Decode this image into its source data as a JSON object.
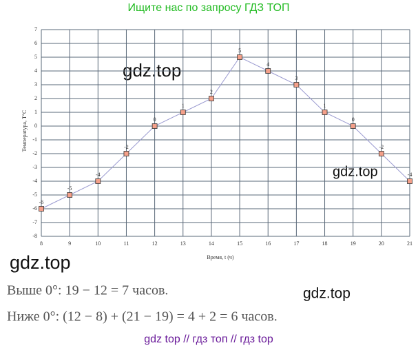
{
  "header": {
    "text": "Ищите нас по запросу ГДЗ ТОП"
  },
  "chart_data": {
    "type": "line",
    "x": [
      8,
      9,
      10,
      11,
      12,
      13,
      14,
      15,
      16,
      17,
      18,
      19,
      20,
      21
    ],
    "series": [
      {
        "name": "Температура",
        "color": "#9a9ad0",
        "marker_color": "#f4a08a",
        "values": [
          -6,
          -5,
          -4,
          -2,
          0,
          1,
          2,
          5,
          4,
          3,
          1,
          0,
          -2,
          -4
        ]
      }
    ],
    "xlim": [
      8,
      21
    ],
    "ylim": [
      -8,
      7
    ],
    "xticks": [
      8,
      9,
      10,
      11,
      12,
      13,
      14,
      15,
      16,
      17,
      18,
      19,
      20,
      21
    ],
    "yticks": [
      -8,
      -7,
      -6,
      -5,
      -4,
      -3,
      -2,
      -1,
      0,
      1,
      2,
      3,
      4,
      5,
      6,
      7
    ],
    "xlabel": "Время, t (ч)",
    "ylabel": "Температура, T°C",
    "grid": true
  },
  "watermarks": [
    "gdz.top",
    "gdz.top",
    "gdz.top",
    "gdz.top"
  ],
  "solution": {
    "lines": [
      "Выше 0°:   19 − 12 = 7 часов.",
      "Ниже 0°:   (12 − 8) + (21 − 19) = 4 + 2 = 6 часов."
    ]
  },
  "footer": {
    "text": "gdz top  //  гдз топ  //  гдз top"
  }
}
